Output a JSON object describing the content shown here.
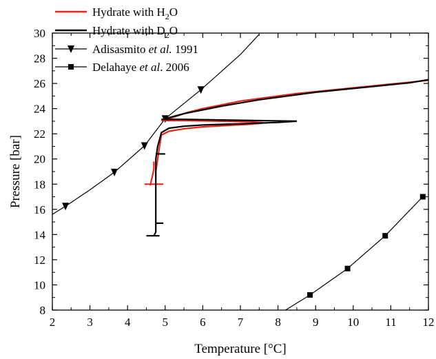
{
  "chart_data": {
    "type": "line",
    "xlabel": "Temperature [°C]",
    "ylabel": "Pressure [bar]",
    "xlim": [
      2,
      12
    ],
    "ylim": [
      8,
      30
    ],
    "xticks": [
      2,
      3,
      4,
      5,
      6,
      7,
      8,
      9,
      10,
      11,
      12
    ],
    "yticks": [
      8,
      10,
      12,
      14,
      16,
      18,
      20,
      22,
      24,
      26,
      28,
      30
    ],
    "grid": false,
    "legend_position": "top-left",
    "series": [
      {
        "name": "Hydrate with H2O",
        "legend": {
          "main": "Hydrate with H",
          "sub": "2",
          "tail": "O"
        },
        "color": "#e8231c",
        "marker": "none",
        "paths": [
          [
            [
              5.0,
              23.1
            ],
            [
              5.3,
              23.4
            ],
            [
              5.6,
              23.7
            ],
            [
              6.0,
              24.0
            ],
            [
              6.5,
              24.3
            ],
            [
              7.0,
              24.6
            ],
            [
              7.5,
              24.8
            ],
            [
              8.0,
              25.0
            ],
            [
              8.5,
              25.2
            ],
            [
              9.0,
              25.35
            ],
            [
              9.5,
              25.5
            ],
            [
              10.0,
              25.65
            ],
            [
              10.5,
              25.8
            ],
            [
              11.0,
              25.95
            ],
            [
              11.5,
              26.1
            ],
            [
              12.0,
              26.25
            ]
          ],
          [
            [
              4.9,
              23.05
            ],
            [
              5.5,
              23.05
            ],
            [
              6.5,
              23.0
            ],
            [
              7.3,
              22.95
            ],
            [
              7.7,
              22.85
            ]
          ],
          [
            [
              7.6,
              22.85
            ],
            [
              7.2,
              22.75
            ],
            [
              6.6,
              22.65
            ],
            [
              6.0,
              22.55
            ],
            [
              5.5,
              22.4
            ],
            [
              5.1,
              22.2
            ],
            [
              4.9,
              21.9
            ],
            [
              4.85,
              21.0
            ],
            [
              4.8,
              20.0
            ],
            [
              4.75,
              19.0
            ],
            [
              4.75,
              18.5
            ]
          ],
          [
            [
              4.45,
              18.0
            ],
            [
              4.95,
              18.0
            ]
          ],
          [
            [
              4.6,
              17.9
            ],
            [
              4.65,
              18.5
            ],
            [
              4.7,
              19.2
            ],
            [
              4.7,
              19.8
            ]
          ]
        ]
      },
      {
        "name": "Hydrate with D2O",
        "legend": {
          "main": "Hydrate with D",
          "sub": "2",
          "tail": "O"
        },
        "color": "#000000",
        "marker": "none",
        "paths": [
          [
            [
              5.0,
              23.2
            ],
            [
              5.5,
              23.6
            ],
            [
              6.0,
              23.9
            ],
            [
              6.5,
              24.2
            ],
            [
              7.0,
              24.45
            ],
            [
              7.5,
              24.7
            ],
            [
              8.0,
              24.9
            ],
            [
              8.5,
              25.1
            ],
            [
              9.0,
              25.3
            ],
            [
              9.5,
              25.45
            ],
            [
              10.0,
              25.6
            ],
            [
              10.5,
              25.75
            ],
            [
              11.0,
              25.9
            ],
            [
              11.5,
              26.05
            ],
            [
              12.0,
              26.3
            ]
          ],
          [
            [
              4.9,
              23.15
            ],
            [
              5.5,
              23.15
            ],
            [
              6.5,
              23.1
            ],
            [
              7.5,
              23.05
            ],
            [
              8.5,
              23.0
            ]
          ],
          [
            [
              8.5,
              23.0
            ],
            [
              8.0,
              22.9
            ],
            [
              7.5,
              22.85
            ],
            [
              7.0,
              22.8
            ],
            [
              6.5,
              22.75
            ],
            [
              6.0,
              22.7
            ],
            [
              5.5,
              22.6
            ],
            [
              5.1,
              22.45
            ],
            [
              4.9,
              22.1
            ],
            [
              4.8,
              21.0
            ],
            [
              4.75,
              20.0
            ],
            [
              4.75,
              19.0
            ],
            [
              4.75,
              18.0
            ],
            [
              4.75,
              17.0
            ],
            [
              4.75,
              16.0
            ],
            [
              4.75,
              15.0
            ],
            [
              4.75,
              14.2
            ],
            [
              4.7,
              13.9
            ]
          ],
          [
            [
              4.5,
              13.9
            ],
            [
              4.85,
              13.9
            ]
          ],
          [
            [
              4.75,
              20.4
            ],
            [
              5.0,
              20.4
            ]
          ],
          [
            [
              4.75,
              14.9
            ],
            [
              4.95,
              14.9
            ]
          ]
        ]
      },
      {
        "name": "Adisasmito et al. 1991",
        "legend": {
          "main": "Adisasmito ",
          "italic": "et al.",
          "tail": " 1991"
        },
        "color": "#000000",
        "marker": "triangle-down",
        "points": [
          [
            2.35,
            16.25
          ],
          [
            3.65,
            18.95
          ],
          [
            4.45,
            21.05
          ],
          [
            5.0,
            23.2
          ],
          [
            5.95,
            25.5
          ]
        ],
        "line": [
          [
            2.0,
            15.6
          ],
          [
            2.35,
            16.25
          ],
          [
            3.0,
            17.55
          ],
          [
            3.65,
            18.95
          ],
          [
            4.45,
            21.05
          ],
          [
            5.0,
            23.2
          ],
          [
            5.95,
            25.5
          ],
          [
            7.0,
            28.3
          ],
          [
            7.5,
            29.9
          ]
        ]
      },
      {
        "name": "Delahaye et al. 2006",
        "legend": {
          "main": "Delahaye ",
          "italic": "et al",
          "tail": ". 2006"
        },
        "color": "#000000",
        "marker": "square",
        "points": [
          [
            8.85,
            9.2
          ],
          [
            9.85,
            11.3
          ],
          [
            10.85,
            13.9
          ],
          [
            11.85,
            17.0
          ]
        ],
        "line": [
          [
            8.2,
            8.0
          ],
          [
            8.85,
            9.2
          ],
          [
            9.85,
            11.3
          ],
          [
            10.85,
            13.9
          ],
          [
            11.85,
            17.0
          ]
        ]
      }
    ]
  }
}
